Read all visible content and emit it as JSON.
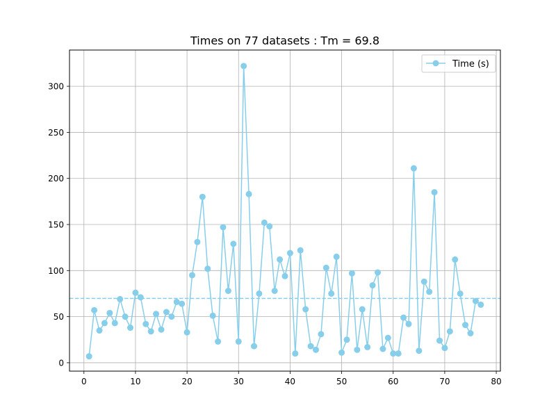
{
  "chart_data": {
    "type": "line",
    "title": "Times on 77 datasets : Tm = 69.8",
    "xlabel": "",
    "ylabel": "",
    "xlim": [
      -2.8,
      80.8
    ],
    "ylim": [
      -9.1,
      339.3
    ],
    "xticks": [
      0,
      10,
      20,
      30,
      40,
      50,
      60,
      70,
      80
    ],
    "yticks": [
      0,
      50,
      100,
      150,
      200,
      250,
      300
    ],
    "grid": true,
    "legend_position": "top-right",
    "mean_line": {
      "value": 69.8,
      "style": "dashed"
    },
    "series": [
      {
        "name": "Time (s)",
        "color": "#87ceeb",
        "marker": "circle",
        "x": [
          1,
          2,
          3,
          4,
          5,
          6,
          7,
          8,
          9,
          10,
          11,
          12,
          13,
          14,
          15,
          16,
          17,
          18,
          19,
          20,
          21,
          22,
          23,
          24,
          25,
          26,
          27,
          28,
          29,
          30,
          31,
          32,
          33,
          34,
          35,
          36,
          37,
          38,
          39,
          40,
          41,
          42,
          43,
          44,
          45,
          46,
          47,
          48,
          49,
          50,
          51,
          52,
          53,
          54,
          55,
          56,
          57,
          58,
          59,
          60,
          61,
          62,
          63,
          64,
          65,
          66,
          67,
          68,
          69,
          70,
          71,
          72,
          73,
          74,
          75,
          76,
          77
        ],
        "values": [
          7,
          57,
          35,
          43,
          54,
          43,
          69,
          50,
          38,
          76,
          71,
          42,
          34,
          53,
          36,
          55,
          50,
          66,
          64,
          33,
          95,
          131,
          180,
          102,
          51,
          23,
          147,
          78,
          129,
          23,
          322,
          183,
          18,
          75,
          152,
          148,
          78,
          112,
          94,
          119,
          10,
          122,
          58,
          18,
          14,
          31,
          103,
          75,
          115,
          11,
          25,
          97,
          14,
          58,
          17,
          84,
          98,
          15,
          27,
          10,
          10,
          49,
          42,
          211,
          13,
          88,
          77,
          185,
          24,
          16,
          34,
          112,
          75,
          41,
          32,
          67,
          63
        ]
      }
    ]
  }
}
